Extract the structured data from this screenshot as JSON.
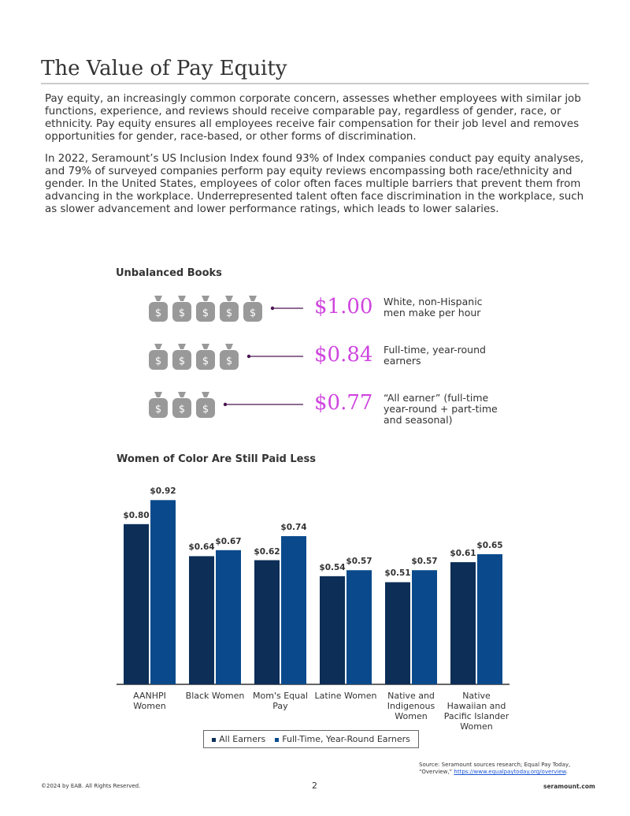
{
  "header": {
    "title": "The Value of Pay Equity"
  },
  "paragraphs": [
    "Pay equity, an increasingly common corporate concern, assesses whether employees with similar job functions, experience, and reviews should receive comparable pay, regardless of gender, race, or ethnicity. Pay equity ensures all employees receive fair compensation for their job level and removes opportunities for gender, race-based, or other forms of discrimination.",
    "In 2022, Seramount’s US Inclusion Index found 93% of Index companies conduct pay equity analyses, and 79% of surveyed companies perform pay equity reviews encompassing both race/ethnicity and gender. In the United States, employees of color often faces multiple barriers that prevent them from advancing in the workplace. Underrepresented talent often face discrimination in the workplace, such as slower advancement and lower performance ratings, which leads to lower salaries."
  ],
  "infographic": {
    "title": "Unbalanced Books",
    "rows": [
      {
        "amount": "$1.00",
        "label": "White, non-Hispanic men make per hour"
      },
      {
        "amount": "$0.84",
        "label": "Full-time, year-round earners"
      },
      {
        "amount": "$0.77",
        "label": "“All earner” (full-time year-round + part-time and seasonal)"
      }
    ]
  },
  "chart_data": {
    "type": "bar",
    "title": "Women of Color Are Still Paid Less",
    "categories": [
      "AANHPI Women",
      "Black Women",
      "Mom's Equal Pay",
      "Latine Women",
      "Native and Indigenous Women",
      "Native Hawaiian and Pacific Islander Women"
    ],
    "series": [
      {
        "name": "All Earners",
        "color": "#0c2e57",
        "values": [
          0.8,
          0.64,
          0.62,
          0.54,
          0.51,
          0.61
        ],
        "value_labels": [
          "$0.80",
          "$0.64",
          "$0.62",
          "$0.54",
          "$0.51",
          "$0.61"
        ]
      },
      {
        "name": "Full-Time, Year-Round Earners",
        "color": "#0a4a8c",
        "values": [
          0.92,
          0.67,
          0.74,
          0.57,
          0.57,
          0.65
        ],
        "value_labels": [
          "$0.92",
          "$0.67",
          "$0.74",
          "$0.57",
          "$0.57",
          "$0.65"
        ]
      }
    ],
    "legend": "bottom"
  },
  "source": {
    "text": "Source: Seramount sources research; Equal Pay Today, “Overview,”",
    "link": "https://www.equalpaytoday.org/overview",
    "end": "."
  },
  "footer": {
    "copyright": "©2024 by EAB. All Rights Reserved.",
    "page": "2",
    "site": "seramount.com"
  }
}
